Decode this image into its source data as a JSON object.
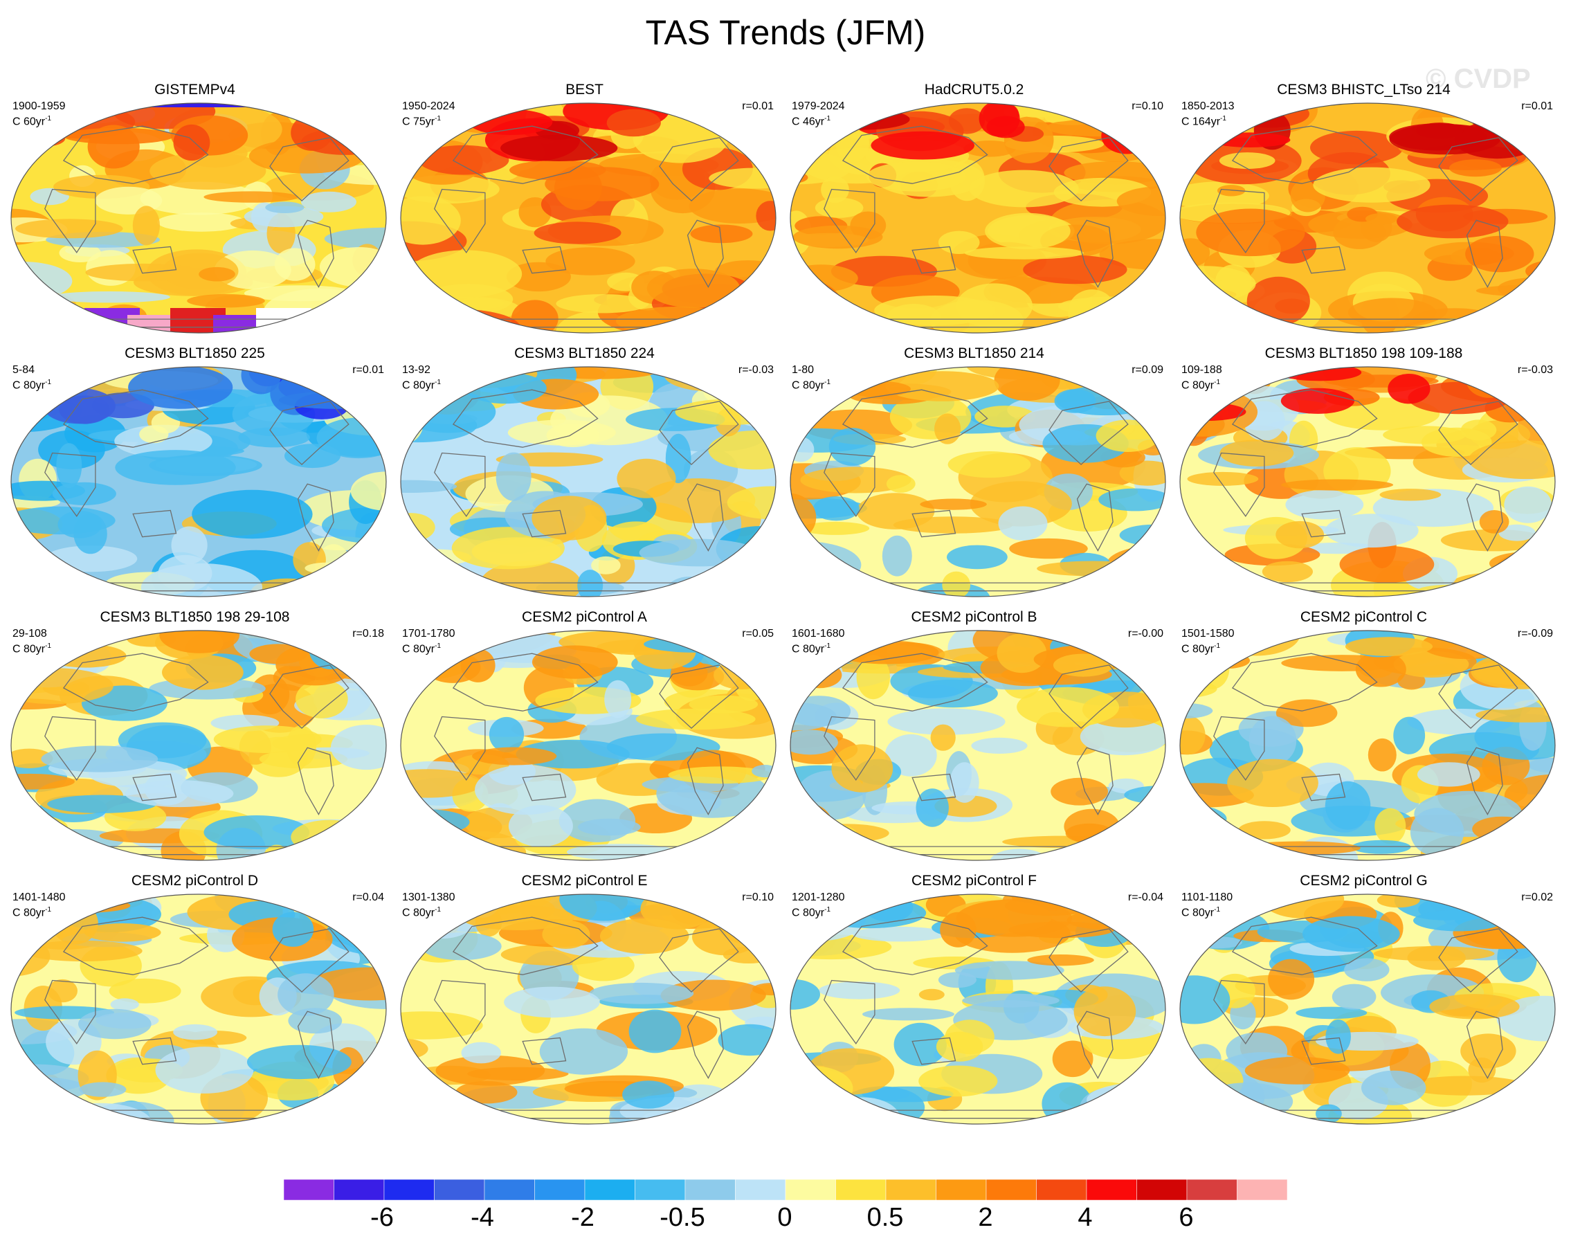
{
  "title": "TAS Trends (JFM)",
  "watermark": "© CVDP",
  "panels": [
    {
      "title": "GISTEMPv4",
      "years": "1900-1959",
      "length": "C 60yr",
      "r": "",
      "scheme": "gis"
    },
    {
      "title": "BEST",
      "years": "1950-2024",
      "length": "C 75yr",
      "r": "r=0.01",
      "scheme": "warm"
    },
    {
      "title": "HadCRUT5.0.2",
      "years": "1979-2024",
      "length": "C 46yr",
      "r": "r=0.10",
      "scheme": "warm"
    },
    {
      "title": "CESM3 BHISTC_LTso 214",
      "years": "1850-2013",
      "length": "C 164yr",
      "r": "r=0.01",
      "scheme": "warm"
    },
    {
      "title": "CESM3 BLT1850 225",
      "years": "5-84",
      "length": "C 80yr",
      "r": "r=0.01",
      "scheme": "cold"
    },
    {
      "title": "CESM3 BLT1850 224",
      "years": "13-92",
      "length": "C 80yr",
      "r": "r=-0.03",
      "scheme": "mixcold"
    },
    {
      "title": "CESM3 BLT1850 214",
      "years": "1-80",
      "length": "C 80yr",
      "r": "r=0.09",
      "scheme": "mix"
    },
    {
      "title": "CESM3 BLT1850 198 109-188",
      "years": "109-188",
      "length": "C 80yr",
      "r": "r=-0.03",
      "scheme": "mixwarm"
    },
    {
      "title": "CESM3 BLT1850 198 29-108",
      "years": "29-108",
      "length": "C 80yr",
      "r": "r=0.18",
      "scheme": "mix"
    },
    {
      "title": "CESM2 piControl A",
      "years": "1701-1780",
      "length": "C 80yr",
      "r": "r=0.05",
      "scheme": "mix"
    },
    {
      "title": "CESM2 piControl B",
      "years": "1601-1680",
      "length": "C 80yr",
      "r": "r=-0.00",
      "scheme": "mix"
    },
    {
      "title": "CESM2 piControl C",
      "years": "1501-1580",
      "length": "C 80yr",
      "r": "r=-0.09",
      "scheme": "mix"
    },
    {
      "title": "CESM2 piControl D",
      "years": "1401-1480",
      "length": "C 80yr",
      "r": "r=0.04",
      "scheme": "mix"
    },
    {
      "title": "CESM2 piControl E",
      "years": "1301-1380",
      "length": "C 80yr",
      "r": "r=0.10",
      "scheme": "mix"
    },
    {
      "title": "CESM2 piControl F",
      "years": "1201-1280",
      "length": "C 80yr",
      "r": "r=-0.04",
      "scheme": "mix"
    },
    {
      "title": "CESM2 piControl G",
      "years": "1101-1180",
      "length": "C 80yr",
      "r": "r=0.02",
      "scheme": "mix"
    }
  ],
  "units_suffix": "-1",
  "units_base": "yr",
  "colorbar": {
    "colors": [
      "#8a2be2",
      "#3a1ee6",
      "#1e2bf0",
      "#3b5fe0",
      "#2f7de8",
      "#2994f0",
      "#1caef0",
      "#46bcf0",
      "#8ecbeb",
      "#bde3f7",
      "#fdfba0",
      "#fde33f",
      "#fdbf2a",
      "#fd9a12",
      "#fd7a0a",
      "#f44a10",
      "#fa0a0a",
      "#d20505",
      "#d83e3e",
      "#fdb3b3"
    ],
    "labels": [
      "-6",
      "-4",
      "-2",
      "-0.5",
      "0",
      "0.5",
      "2",
      "4",
      "6"
    ]
  }
}
